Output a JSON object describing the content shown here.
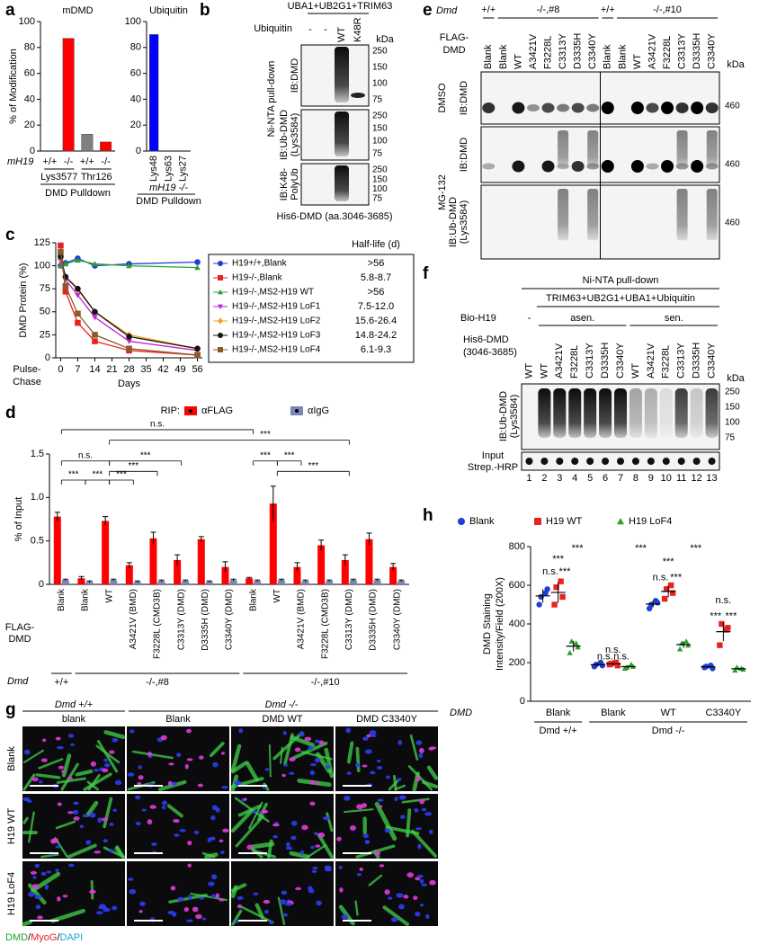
{
  "panel_labels": [
    "a",
    "b",
    "c",
    "d",
    "e",
    "f",
    "g",
    "h"
  ],
  "chart_data": [
    {
      "type": "bar",
      "title": "mDMD",
      "ylabel": "% of Modification",
      "row_label": "mH19",
      "categories": [
        "+/+",
        "-/-",
        "+/+",
        "-/-"
      ],
      "groups": [
        "Lys3577",
        "Thr126"
      ],
      "caption": "DMD Pulldown",
      "values": [
        0,
        87,
        13,
        7
      ],
      "colors": [
        "#808080",
        "#ff0000",
        "#808080",
        "#ff0000"
      ],
      "ylim": [
        0,
        100
      ],
      "yticks": [
        0,
        20,
        40,
        60,
        80,
        100
      ]
    },
    {
      "type": "bar",
      "title": "Ubiquitin",
      "categories": [
        "Lys48",
        "Lys63",
        "Lys27"
      ],
      "captions": [
        "mH19 -/-",
        "DMD Pulldown"
      ],
      "values": [
        90,
        0,
        0
      ],
      "colors": [
        "#0000ff",
        "#0000ff",
        "#0000ff"
      ],
      "ylim": [
        0,
        100
      ],
      "yticks": [
        0,
        20,
        40,
        60,
        80,
        100
      ]
    },
    {
      "type": "line",
      "ylabel": "DMD Protein (%)",
      "xlabel": "Days",
      "x_caption": [
        "Pulse-",
        "Chase"
      ],
      "half_life_header": "Half-life (d)",
      "x": [
        0,
        2,
        7,
        14,
        28,
        56
      ],
      "xlim": [
        -2,
        58
      ],
      "xticks": [
        0,
        7,
        14,
        21,
        28,
        35,
        42,
        49,
        56
      ],
      "ylim": [
        0,
        125
      ],
      "yticks": [
        0,
        25,
        50,
        75,
        100,
        125
      ],
      "series": [
        {
          "name": "H19+/+,Blank",
          "color": "#1f3fd1",
          "marker": "circle",
          "values": [
            100,
            103,
            108,
            100,
            102,
            104
          ],
          "half_life": ">56"
        },
        {
          "name": "H19-/-,Blank",
          "color": "#e8231f",
          "marker": "square",
          "values": [
            122,
            72,
            38,
            18,
            8,
            3
          ],
          "half_life": "5.8-8.7"
        },
        {
          "name": "H19-/-,MS2-H19 WT",
          "color": "#2ca02c",
          "marker": "triangle",
          "values": [
            100,
            102,
            106,
            102,
            100,
            98
          ],
          "half_life": ">56"
        },
        {
          "name": "H19-/-,MS2-H19 LoF1",
          "color": "#c21fd6",
          "marker": "triangle-down",
          "values": [
            105,
            85,
            68,
            44,
            18,
            8
          ],
          "half_life": "7.5-12.0"
        },
        {
          "name": "H19-/-,MS2-H19 LoF2",
          "color": "#f5a020",
          "marker": "diamond",
          "values": [
            108,
            88,
            74,
            50,
            25,
            10
          ],
          "half_life": "15.6-26.4"
        },
        {
          "name": "H19-/-,MS2-H19 LoF3",
          "color": "#111111",
          "marker": "circle",
          "values": [
            110,
            88,
            75,
            50,
            23,
            10
          ],
          "half_life": "14.8-24.2"
        },
        {
          "name": "H19-/-,MS2-H19 LoF4",
          "color": "#8b5a2b",
          "marker": "square",
          "values": [
            115,
            78,
            48,
            25,
            10,
            3
          ],
          "half_life": "6.1-9.3"
        }
      ]
    },
    {
      "type": "bar",
      "ylabel": "% of Input",
      "legend_title": "RIP:",
      "row_label": [
        "FLAG-",
        "DMD"
      ],
      "genotype_label": "Dmd",
      "groups": [
        "+/+",
        "-/-,#8",
        "-/-,#10"
      ],
      "categories": [
        "Blank",
        "Blank",
        "WT",
        "A3421V (BMD)",
        "F3228L (CMD3B)",
        "C3313Y (DMD)",
        "D3335H (DMD)",
        "C3340Y (DMD)",
        "Blank",
        "WT",
        "A3421V (BMD)",
        "F3228L (CMD3B)",
        "C3313Y (DMD)",
        "D3335H (DMD)",
        "C3340Y (DMD)"
      ],
      "series": [
        {
          "name": "αFLAG",
          "color": "#ff0000",
          "values": [
            0.78,
            0.07,
            0.73,
            0.22,
            0.53,
            0.28,
            0.52,
            0.2,
            0.07,
            0.93,
            0.2,
            0.45,
            0.28,
            0.52,
            0.2
          ],
          "errors": [
            0.05,
            0.02,
            0.05,
            0.03,
            0.07,
            0.06,
            0.03,
            0.06,
            0.01,
            0.2,
            0.05,
            0.06,
            0.06,
            0.07,
            0.04
          ]
        },
        {
          "name": "αIgG",
          "color": "#7d84b8",
          "values": [
            0.05,
            0.03,
            0.05,
            0.03,
            0.04,
            0.04,
            0.03,
            0.05,
            0.04,
            0.05,
            0.04,
            0.04,
            0.05,
            0.05,
            0.04
          ],
          "errors": [
            0.01,
            0.01,
            0.01,
            0.01,
            0.01,
            0.01,
            0.01,
            0.01,
            0.01,
            0.01,
            0.01,
            0.01,
            0.01,
            0.01,
            0.01
          ]
        }
      ],
      "annotations": [
        "n.s.",
        "***",
        "n.s.",
        "***",
        "***",
        "***",
        "***",
        "***",
        "***",
        "***",
        "***"
      ],
      "ylim": [
        0,
        1.5
      ],
      "yticks": [
        0,
        0.5,
        {
          "value": 1,
          "label": "1.0"
        },
        1.5
      ]
    },
    {
      "type": "dot",
      "ylabel": [
        "DMD Staining",
        "Intensity/Field (200X)"
      ],
      "row_label": "DMD",
      "groups": [
        "Dmd +/+",
        "Dmd -/-"
      ],
      "categories": [
        "Blank",
        "Blank",
        "WT",
        "C3340Y"
      ],
      "series": [
        {
          "name": "Blank",
          "color": "#1f3fd1",
          "marker": "circle",
          "values": [
            [
              500,
              560,
              540,
              580
            ],
            [
              180,
              200,
              190,
              185
            ],
            [
              480,
              520,
              500,
              510
            ],
            [
              175,
              185,
              180,
              170
            ]
          ],
          "means": [
            545,
            189,
            503,
            178
          ],
          "sd": [
            35,
            9,
            17,
            6
          ]
        },
        {
          "name": "H19 WT",
          "color": "#e8231f",
          "marker": "square",
          "values": [
            [
              500,
              620,
              590,
              540
            ],
            [
              190,
              200,
              195,
              185
            ],
            [
              530,
              600,
              580,
              560
            ],
            [
              290,
              370,
              400,
              380
            ]
          ],
          "means": [
            563,
            194,
            568,
            360
          ],
          "sd": [
            53,
            7,
            30,
            49
          ]
        },
        {
          "name": "H19 LoF4",
          "color": "#2ca02c",
          "marker": "triangle",
          "values": [
            [
              250,
              300,
              310,
              280
            ],
            [
              170,
              190,
              175,
              180
            ],
            [
              270,
              310,
              300,
              290
            ],
            [
              160,
              170,
              175,
              165
            ]
          ],
          "means": [
            285,
            179,
            293,
            168
          ],
          "sd": [
            27,
            8,
            17,
            6
          ]
        }
      ],
      "annotations": [
        "***",
        "***",
        "***",
        "***",
        "***",
        "n.s.",
        "***",
        "n.s.",
        "***",
        "n.s.",
        "n.s.",
        "n.s.",
        "n.s.",
        "***",
        "***"
      ],
      "ylim": [
        0,
        800
      ],
      "yticks": [
        0,
        200,
        400,
        600,
        800
      ]
    }
  ],
  "blot_b": {
    "header": "UBA1+UB2G1+TRIM63",
    "ubiquitin_label": "Ubiquitin",
    "lanes": [
      "-",
      "-",
      "WT",
      "K48R"
    ],
    "kda": "kDa",
    "markers": [
      "250",
      "150",
      "100",
      "75"
    ],
    "probes": [
      [
        "IB:DMD"
      ],
      [
        "IB:Ub-DMD",
        "(Lys3584)"
      ],
      [
        "IB:K48-",
        "PolyUb"
      ]
    ],
    "side_label": "Ni-NTA pull-down",
    "footer": "His6-DMD (aa.3046-3685)"
  },
  "blot_e": {
    "genotype_label": "Dmd",
    "groups": [
      "+/+",
      "-/-,#8",
      "+/+",
      "-/-,#10"
    ],
    "row_label": [
      "FLAG-",
      "DMD"
    ],
    "lanes": [
      "Blank",
      "Blank",
      "WT",
      "A3421V",
      "F3228L",
      "C3313Y",
      "D3335H",
      "C3340Y",
      "Blank",
      "Blank",
      "WT",
      "A3421V",
      "F3228L",
      "C3313Y",
      "D3335H",
      "C3340Y"
    ],
    "kda": "kDa",
    "marker": "460",
    "treatments": [
      "DMSO",
      "MG-132"
    ],
    "probes": [
      [
        "IB:DMD"
      ],
      [
        "IB:DMD"
      ],
      [
        "IB:Ub-DMD",
        "(Lys3584)"
      ]
    ]
  },
  "blot_f": {
    "title": "Ni-NTA pull-down",
    "reaction": "TRIM63+UB2G1+UBA1+Ubiquitin",
    "bio_label": "Bio-H19",
    "bio_groups": [
      "-",
      "asen.",
      "sen."
    ],
    "his_label": [
      "His6-DMD",
      "(3046-3685)"
    ],
    "lanes": [
      "WT",
      "WT",
      "A3421V",
      "F3228L",
      "C3313Y",
      "D3335H",
      "C3340Y",
      "WT",
      "A3421V",
      "F3228L",
      "C3313Y",
      "D3335H",
      "C3340Y"
    ],
    "kda": "kDa",
    "markers": [
      "250",
      "150",
      "100",
      "75"
    ],
    "probe": [
      "IB:Ub-DMD",
      "(Lys3584)"
    ],
    "input_label": [
      "Input",
      "Strep.-HRP"
    ],
    "lane_numbers": [
      "1",
      "2",
      "3",
      "4",
      "5",
      "6",
      "7",
      "8",
      "9",
      "10",
      "11",
      "12",
      "13"
    ]
  },
  "micrographs": {
    "groups": [
      "Dmd +/+",
      "Dmd -/-"
    ],
    "columns": [
      "blank",
      "Blank",
      "DMD WT",
      "DMD C3340Y"
    ],
    "rows": [
      "Blank",
      "H19 WT",
      "H19 LoF4"
    ],
    "stain": [
      "DMD",
      "/",
      "MyoG",
      "/",
      "DAPI"
    ]
  }
}
